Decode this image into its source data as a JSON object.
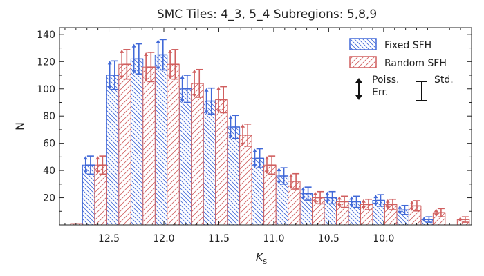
{
  "chart_data": {
    "type": "bar",
    "title": "SMC Tiles: 4_3, 5_4 Subregions: 5,8,9",
    "xlabel": "K",
    "xlabel_sub": "s",
    "ylabel": "N",
    "x_reversed": true,
    "xlim": [
      12.95,
      9.2
    ],
    "ylim": [
      0,
      145
    ],
    "bin_width": 0.1,
    "x_ticks": [
      12.5,
      12.0,
      11.5,
      11.0,
      10.5,
      10.0
    ],
    "x_tick_labels": [
      "12.5",
      "12.0",
      "11.5",
      "11.0",
      "10.5",
      "10.0"
    ],
    "y_ticks": [
      20,
      40,
      60,
      80,
      100,
      120,
      140
    ],
    "y_tick_labels": [
      "20",
      "40",
      "60",
      "80",
      "100",
      "120",
      "140"
    ],
    "bin_centers": [
      12.9,
      12.8,
      12.7,
      12.6,
      12.5,
      12.4,
      12.3,
      12.2,
      12.1,
      12.0,
      11.9,
      11.8,
      11.7,
      11.6,
      11.5,
      11.4,
      11.3,
      11.2,
      11.1,
      11.0,
      10.9,
      10.8,
      10.7,
      10.6,
      10.5,
      10.4,
      10.3,
      10.2,
      10.1,
      10.0,
      9.9,
      9.8,
      9.7,
      9.6,
      9.5,
      9.4,
      9.3
    ],
    "series": [
      {
        "name": "Fixed SFH",
        "color": "#4169d8",
        "hatch": "backslash",
        "values": [
          0,
          44,
          110,
          122,
          125,
          100,
          91,
          72,
          49,
          36,
          23,
          20,
          17,
          18,
          11,
          4,
          0
        ],
        "bins_start": 12.85,
        "poisson_err": true
      },
      {
        "name": "Random SFH",
        "color": "#d05f5f",
        "hatch": "slash",
        "values": [
          1,
          44,
          118,
          116,
          118,
          104,
          92,
          66,
          44,
          32,
          20,
          17,
          15,
          15,
          14,
          9,
          4
        ],
        "bins_start": 12.85,
        "std_err": true
      }
    ],
    "legend": {
      "position": "top-right",
      "entries": [
        "Fixed SFH",
        "Random SFH"
      ],
      "poisson_label_1": "Poiss.",
      "poisson_label_2": "Err.",
      "std_label": "Std."
    }
  }
}
